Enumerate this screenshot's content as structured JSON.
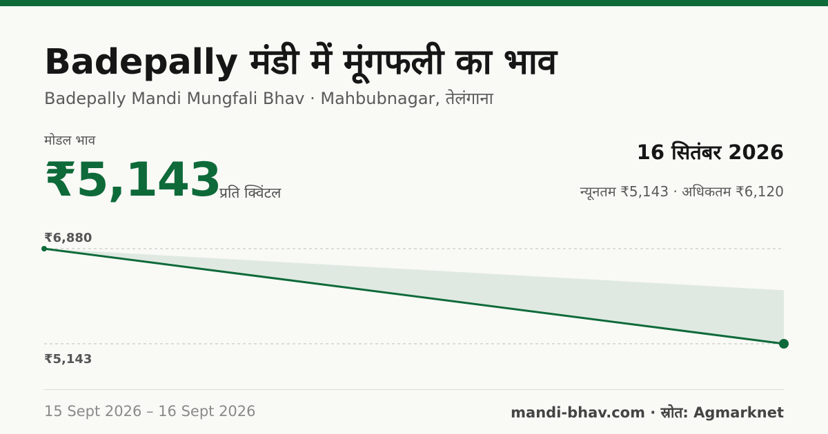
{
  "header": {
    "title": "Badepally मंडी में मूंगफली का भाव",
    "subtitle": "Badepally Mandi Mungfali Bhav · Mahbubnagar, तेलंगाना"
  },
  "summary": {
    "modal_label": "मोडल भाव",
    "modal_price": "₹5,143",
    "unit": "प्रति क्विंटल",
    "date": "16 सितंबर 2026",
    "min_max": "न्यूनतम ₹5,143 · अधिकतम ₹6,120"
  },
  "footer": {
    "date_range": "15 Sept 2026 – 16 Sept 2026",
    "source": "mandi-bhav.com · स्रोत: Agmarknet"
  },
  "colors": {
    "accent": "#0e6a39",
    "band_fill": "#dfe9e2",
    "text_dark": "#161616",
    "text_muted": "#5a5a5a"
  },
  "chart_data": {
    "type": "line",
    "x": [
      "15 Sept 2026",
      "16 Sept 2026"
    ],
    "series": [
      {
        "values": [
          6880,
          5143
        ]
      }
    ],
    "band": {
      "upper": [
        6880,
        6120
      ],
      "lower": [
        6880,
        5143
      ]
    },
    "ylim": [
      5143,
      6880
    ],
    "y_tick_labels": [
      "₹6,880",
      "₹5,143"
    ],
    "grid": true
  }
}
